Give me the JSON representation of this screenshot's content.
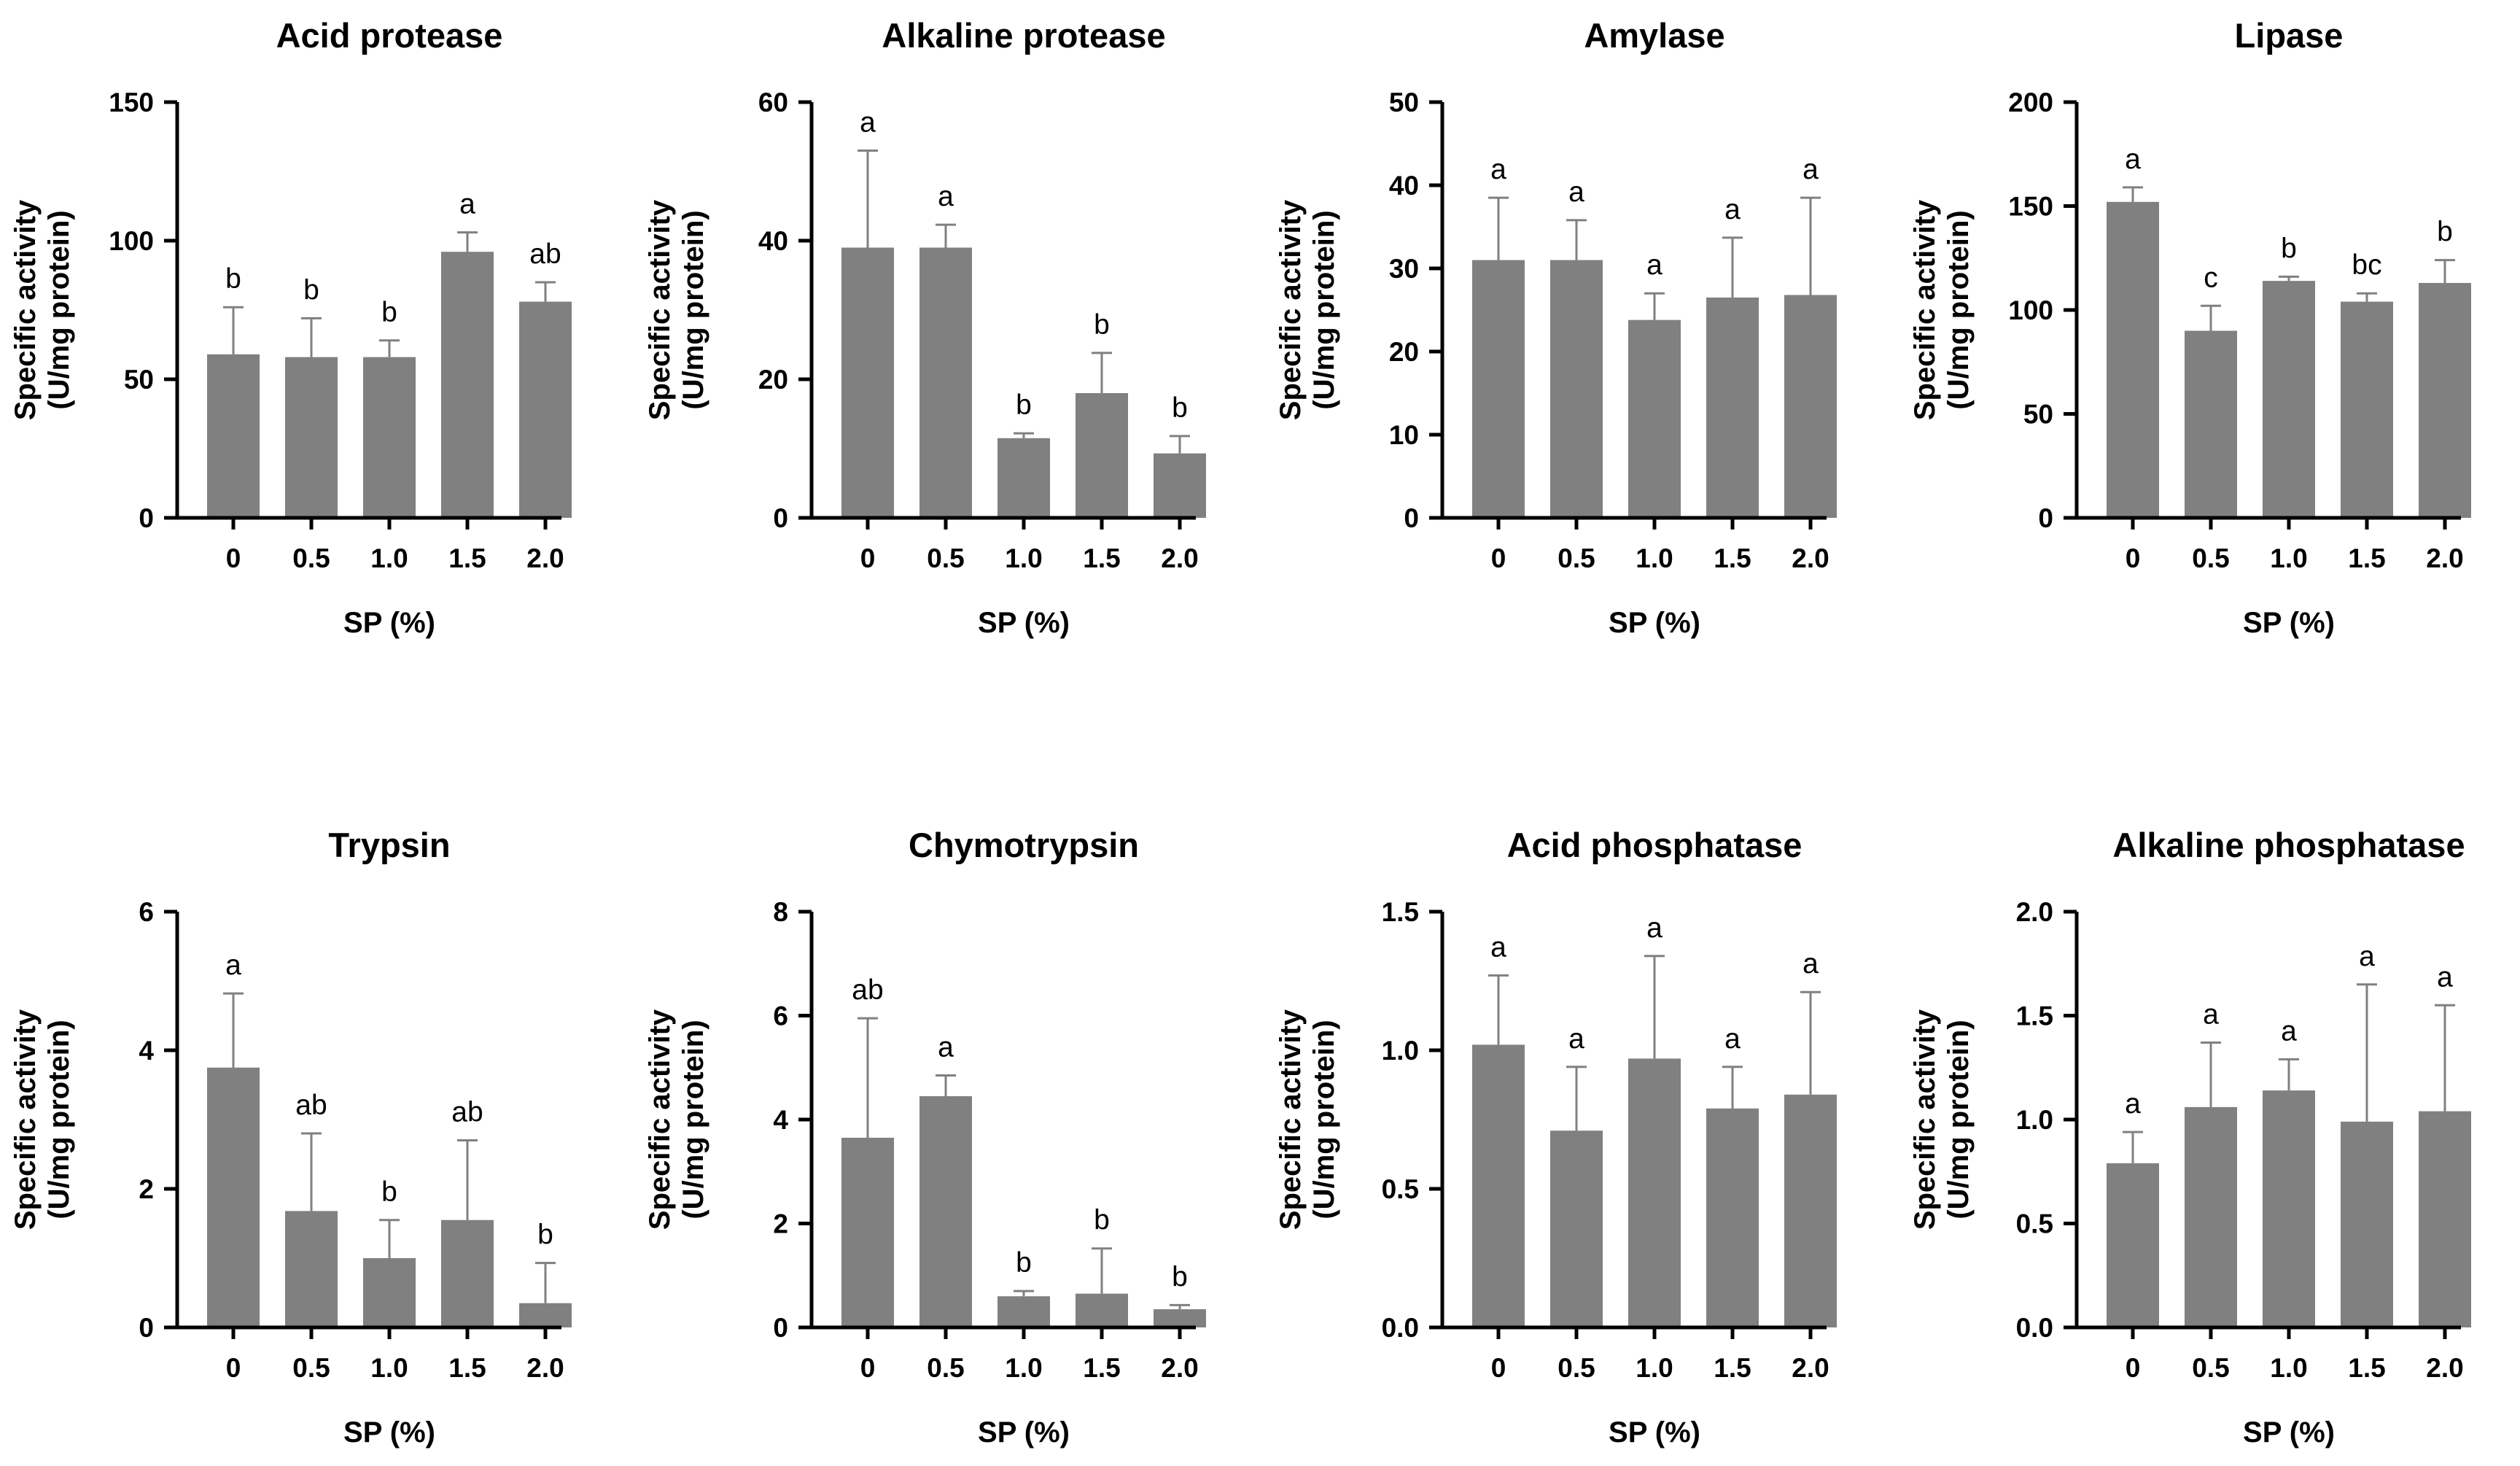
{
  "colors": {
    "bar": "#808080",
    "error_bar": "#808080",
    "axis": "#000000",
    "background": "#ffffff"
  },
  "chart_data": [
    {
      "type": "bar",
      "title": "Acid protease",
      "xlabel": "SP (%)",
      "ylabel": [
        "Specific activity",
        "(U/mg protein)"
      ],
      "categories": [
        "0",
        "0.5",
        "1.0",
        "1.5",
        "2.0"
      ],
      "values": [
        59,
        58,
        58,
        96,
        78
      ],
      "errors": [
        17,
        14,
        6,
        7,
        7
      ],
      "significance": [
        "b",
        "b",
        "b",
        "a",
        "ab"
      ],
      "ylim": [
        0,
        150
      ],
      "yticks": [
        0,
        50,
        100,
        150
      ],
      "ytick_labels": [
        "0",
        "50",
        "100",
        "150"
      ]
    },
    {
      "type": "bar",
      "title": "Alkaline protease",
      "xlabel": "SP (%)",
      "ylabel": [
        "Specific activity",
        "(U/mg protein)"
      ],
      "categories": [
        "0",
        "0.5",
        "1.0",
        "1.5",
        "2.0"
      ],
      "values": [
        39,
        39,
        11.5,
        18,
        9.3
      ],
      "errors": [
        14,
        3.3,
        0.7,
        5.8,
        2.5
      ],
      "significance": [
        "a",
        "a",
        "b",
        "b",
        "b"
      ],
      "ylim": [
        0,
        60
      ],
      "yticks": [
        0,
        20,
        40,
        60
      ],
      "ytick_labels": [
        "0",
        "20",
        "40",
        "60"
      ]
    },
    {
      "type": "bar",
      "title": "Amylase",
      "xlabel": "SP (%)",
      "ylabel": [
        "Specific activity",
        "(U/mg protein)"
      ],
      "categories": [
        "0",
        "0.5",
        "1.0",
        "1.5",
        "2.0"
      ],
      "values": [
        31,
        31,
        23.8,
        26.5,
        26.8
      ],
      "errors": [
        7.5,
        4.8,
        3.2,
        7.2,
        11.7
      ],
      "significance": [
        "a",
        "a",
        "a",
        "a",
        "a"
      ],
      "ylim": [
        0,
        50
      ],
      "yticks": [
        0,
        10,
        20,
        30,
        40,
        50
      ],
      "ytick_labels": [
        "0",
        "10",
        "20",
        "30",
        "40",
        "50"
      ]
    },
    {
      "type": "bar",
      "title": "Lipase",
      "xlabel": "SP (%)",
      "ylabel": [
        "Specific activity",
        "(U/mg protein)"
      ],
      "categories": [
        "0",
        "0.5",
        "1.0",
        "1.5",
        "2.0"
      ],
      "values": [
        152,
        90,
        114,
        104,
        113
      ],
      "errors": [
        7,
        12,
        2,
        4,
        11
      ],
      "significance": [
        "a",
        "c",
        "b",
        "bc",
        "b"
      ],
      "ylim": [
        0,
        200
      ],
      "yticks": [
        0,
        50,
        100,
        150,
        200
      ],
      "ytick_labels": [
        "0",
        "50",
        "100",
        "150",
        "200"
      ]
    },
    {
      "type": "bar",
      "title": "Trypsin",
      "xlabel": "SP (%)",
      "ylabel": [
        "Specific activity",
        "(U/mg protein)"
      ],
      "categories": [
        "0",
        "0.5",
        "1.0",
        "1.5",
        "2.0"
      ],
      "values": [
        3.75,
        1.68,
        1.0,
        1.55,
        0.35
      ],
      "errors": [
        1.07,
        1.12,
        0.55,
        1.15,
        0.58
      ],
      "significance": [
        "a",
        "ab",
        "b",
        "ab",
        "b"
      ],
      "ylim": [
        0,
        6
      ],
      "yticks": [
        0,
        2,
        4,
        6
      ],
      "ytick_labels": [
        "0",
        "2",
        "4",
        "6"
      ]
    },
    {
      "type": "bar",
      "title": "Chymotrypsin",
      "xlabel": "SP (%)",
      "ylabel": [
        "Specific activity",
        "(U/mg protein)"
      ],
      "categories": [
        "0",
        "0.5",
        "1.0",
        "1.5",
        "2.0"
      ],
      "values": [
        3.65,
        4.45,
        0.6,
        0.65,
        0.35
      ],
      "errors": [
        2.3,
        0.4,
        0.1,
        0.87,
        0.08
      ],
      "significance": [
        "ab",
        "a",
        "b",
        "b",
        "b"
      ],
      "ylim": [
        0,
        8
      ],
      "yticks": [
        0,
        2,
        4,
        6,
        8
      ],
      "ytick_labels": [
        "0",
        "2",
        "4",
        "6",
        "8"
      ]
    },
    {
      "type": "bar",
      "title": "Acid phosphatase",
      "xlabel": "SP (%)",
      "ylabel": [
        "Specific activity",
        "(U/mg protein)"
      ],
      "categories": [
        "0",
        "0.5",
        "1.0",
        "1.5",
        "2.0"
      ],
      "values": [
        1.02,
        0.71,
        0.97,
        0.79,
        0.84
      ],
      "errors": [
        0.25,
        0.23,
        0.37,
        0.15,
        0.37
      ],
      "significance": [
        "a",
        "a",
        "a",
        "a",
        "a"
      ],
      "ylim": [
        0,
        1.5
      ],
      "yticks": [
        0,
        0.5,
        1.0,
        1.5
      ],
      "ytick_labels": [
        "0.0",
        "0.5",
        "1.0",
        "1.5"
      ]
    },
    {
      "type": "bar",
      "title": "Alkaline phosphatase",
      "xlabel": "SP (%)",
      "ylabel": [
        "Specific activity",
        "(U/mg protein)"
      ],
      "categories": [
        "0",
        "0.5",
        "1.0",
        "1.5",
        "2.0"
      ],
      "values": [
        0.79,
        1.06,
        1.14,
        0.99,
        1.04
      ],
      "errors": [
        0.15,
        0.31,
        0.15,
        0.66,
        0.51
      ],
      "significance": [
        "a",
        "a",
        "a",
        "a",
        "a"
      ],
      "ylim": [
        0,
        2.0
      ],
      "yticks": [
        0,
        0.5,
        1.0,
        1.5,
        2.0
      ],
      "ytick_labels": [
        "0.0",
        "0.5",
        "1.0",
        "1.5",
        "2.0"
      ]
    }
  ]
}
